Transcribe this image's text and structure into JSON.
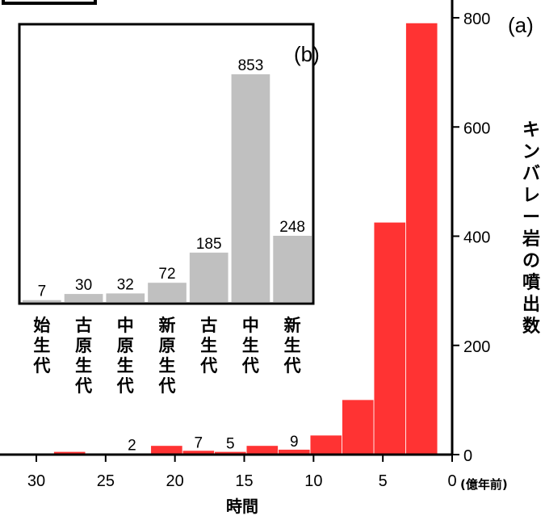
{
  "chart_data": [
    {
      "type": "bar",
      "panel_label": "(a)",
      "xlabel": "時間",
      "xunit": "(億年前)",
      "ylabel": "キンバレー岩の噴出数",
      "xlim": [
        32,
        0
      ],
      "ylim": [
        0,
        800
      ],
      "xticks": [
        30,
        25,
        20,
        15,
        10,
        5,
        0
      ],
      "yticks": [
        0,
        200,
        400,
        600,
        800
      ],
      "bar_width": 2.25,
      "bar_color": "#ff3333",
      "bars": [
        {
          "x": 27.6,
          "value": 5
        },
        {
          "x": 23.1,
          "value": 2,
          "label": "2"
        },
        {
          "x": 20.6,
          "value": 16
        },
        {
          "x": 18.3,
          "value": 7,
          "label": "7"
        },
        {
          "x": 16.0,
          "value": 5,
          "label": "5"
        },
        {
          "x": 13.7,
          "value": 16
        },
        {
          "x": 11.4,
          "value": 9,
          "label": "9"
        },
        {
          "x": 9.1,
          "value": 35
        },
        {
          "x": 6.8,
          "value": 100
        },
        {
          "x": 4.5,
          "value": 425
        },
        {
          "x": 2.2,
          "value": 790
        }
      ]
    },
    {
      "type": "bar",
      "panel_label": "(b)",
      "ylim": [
        0,
        1000
      ],
      "bar_color": "#c0c0c0",
      "categories": [
        "始生代",
        "古原生代",
        "中原生代",
        "新原生代",
        "古生代",
        "中生代",
        "新生代"
      ],
      "values": [
        7,
        30,
        32,
        72,
        185,
        853,
        248
      ],
      "labels": [
        "7",
        "30",
        "32",
        "72",
        "185",
        "853",
        "248"
      ]
    }
  ]
}
